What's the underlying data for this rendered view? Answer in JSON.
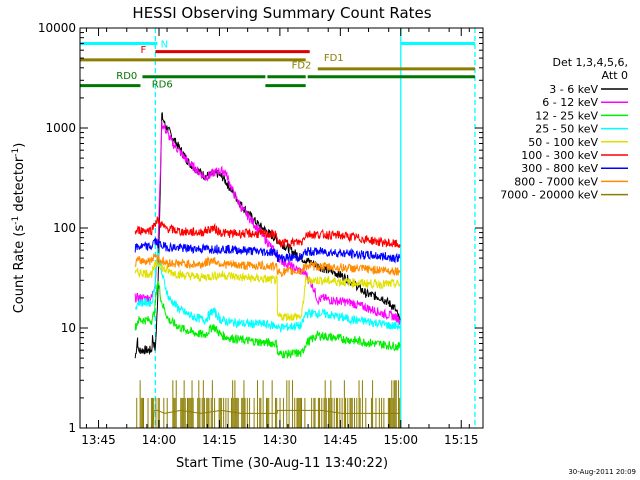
{
  "chart_data": {
    "type": "line",
    "title": "HESSI Observing Summary Count Rates",
    "xlabel": "Start Time (30-Aug-11 13:40:22)",
    "ylabel_prefix": "Count Rate (s",
    "ylabel_sup": "-1",
    "ylabel_suffix": " detector",
    "ylabel_sup2": "-1",
    "ylabel_close": ")",
    "y_scale": "log",
    "ylim": [
      1,
      10000
    ],
    "xlim_minutes": [
      0,
      100
    ],
    "x_ticks": [
      {
        "label": "13:45",
        "t": 4.6
      },
      {
        "label": "14:00",
        "t": 19.6
      },
      {
        "label": "14:15",
        "t": 34.6
      },
      {
        "label": "14:30",
        "t": 49.6
      },
      {
        "label": "14:45",
        "t": 64.6
      },
      {
        "label": "15:00",
        "t": 79.6
      },
      {
        "label": "15:15",
        "t": 94.6
      }
    ],
    "y_ticks": [
      {
        "label": "1",
        "v": 1
      },
      {
        "label": "10",
        "v": 10
      },
      {
        "label": "100",
        "v": 100
      },
      {
        "label": "1000",
        "v": 1000
      },
      {
        "label": "10000",
        "v": 10000
      }
    ],
    "legend_header": [
      "Det 1,3,4,5,6,",
      "Att 0"
    ],
    "series": [
      {
        "name": "3 - 6 keV",
        "color": "#000000",
        "x": [
          13.7,
          14.3,
          14.4,
          17.8,
          18.0,
          18.7,
          19.3,
          20.3,
          21.0,
          23.0,
          27.0,
          31.0,
          34.0,
          35.5,
          37.0,
          40.0,
          44.0,
          50.0,
          55.0,
          60.0,
          64.0,
          68.0,
          71.0,
          75.0,
          78.0,
          79.4
        ],
        "y": [
          5,
          8,
          6,
          6,
          8,
          6,
          20,
          1350,
          1100,
          800,
          450,
          330,
          350,
          320,
          260,
          170,
          110,
          70,
          50,
          40,
          35,
          28,
          22,
          20,
          16,
          12
        ]
      },
      {
        "name": "6 - 12 keV",
        "color": "#ff00ff",
        "x": [
          13.7,
          17.8,
          18.7,
          19.3,
          20.3,
          21.0,
          23.0,
          27.0,
          31.0,
          34.0,
          36.0,
          38.0,
          40.0,
          44.0,
          48.0,
          50.0,
          53.0,
          56.0,
          58.0,
          59.0,
          60.5,
          62.0,
          67.0,
          71.0,
          75.0,
          78.0,
          79.4
        ],
        "y": [
          20,
          20,
          30,
          60,
          1100,
          1000,
          700,
          450,
          320,
          370,
          370,
          230,
          160,
          100,
          60,
          47,
          40,
          35,
          25,
          19,
          20,
          19,
          18,
          16,
          14,
          13,
          12
        ]
      },
      {
        "name": "12 - 25 keV",
        "color": "#00ee00",
        "x": [
          13.7,
          14.4,
          17.8,
          18.4,
          19.3,
          20.3,
          22.0,
          25.0,
          28.0,
          31.0,
          33.0,
          35.0,
          37.0,
          41.0,
          45.0,
          48.9,
          49.0,
          52.0,
          54.0,
          55.0,
          56.0,
          59.0,
          63.0,
          68.0,
          73.0,
          77.0,
          79.4
        ],
        "y": [
          10,
          12,
          12,
          14,
          30,
          18,
          12,
          10,
          9,
          8.5,
          10.5,
          8.5,
          8,
          7.5,
          7.2,
          7,
          5.5,
          5.5,
          5.6,
          5.5,
          7.0,
          8.5,
          8,
          7.5,
          7,
          6.7,
          6.5
        ]
      },
      {
        "name": "25 - 50 keV",
        "color": "#00ffff",
        "x": [
          13.7,
          14.4,
          17.8,
          18.4,
          19.3,
          20.3,
          22.0,
          25.0,
          28.0,
          31.0,
          33.0,
          35.0,
          37.0,
          41.0,
          45.0,
          48.9,
          49.0,
          54.0,
          55.0,
          56.0,
          60.0,
          64.0,
          68.0,
          72.0,
          75.0,
          77.0,
          79.4
        ],
        "y": [
          16,
          18,
          18,
          24,
          60,
          35,
          20,
          15,
          13,
          12,
          15,
          12,
          11.5,
          11,
          11,
          10.5,
          10,
          10.5,
          10.5,
          14,
          14,
          13,
          12,
          11.5,
          11,
          10.5,
          10.5
        ]
      },
      {
        "name": "50 - 100 keV",
        "color": "#e0e000",
        "x": [
          13.7,
          14.4,
          17.8,
          18.4,
          19.3,
          21.0,
          25.0,
          30.0,
          35.0,
          40.0,
          45.0,
          48.9,
          49.0,
          54.0,
          55.0,
          56.0,
          60.0,
          65.0,
          70.0,
          75.0,
          79.4
        ],
        "y": [
          35,
          36,
          35,
          40,
          45,
          38,
          34,
          32,
          34,
          32,
          31,
          30,
          13,
          13,
          13,
          30,
          30,
          29,
          28,
          27.5,
          27.5
        ]
      },
      {
        "name": "100 - 300 keV",
        "color": "#ff0000",
        "x": [
          13.7,
          14.4,
          17.8,
          18.4,
          19.3,
          21.0,
          25.0,
          30.0,
          33.0,
          35.0,
          37.0,
          41.0,
          45.0,
          48.9,
          49.0,
          54.0,
          55.0,
          56.0,
          60.0,
          65.0,
          70.0,
          75.0,
          79.4
        ],
        "y": [
          90,
          95,
          95,
          110,
          120,
          100,
          92,
          90,
          100,
          90,
          88,
          88,
          87,
          86,
          70,
          72,
          72,
          87,
          86,
          84,
          78,
          72,
          68
        ]
      },
      {
        "name": "300 - 800 keV",
        "color": "#0000ff",
        "x": [
          13.7,
          14.4,
          17.8,
          18.4,
          19.3,
          21.0,
          25.0,
          30.0,
          35.0,
          40.0,
          45.0,
          48.9,
          49.0,
          54.0,
          55.0,
          56.0,
          60.0,
          65.0,
          70.0,
          75.0,
          79.4
        ],
        "y": [
          62,
          65,
          65,
          75,
          70,
          65,
          63,
          62,
          62,
          60,
          58,
          57,
          50,
          51,
          51,
          58,
          58,
          56,
          54,
          52,
          50
        ]
      },
      {
        "name": "800 - 7000 keV",
        "color": "#ff8c00",
        "x": [
          13.7,
          14.4,
          17.8,
          18.4,
          19.3,
          21.0,
          25.0,
          30.0,
          33.0,
          35.0,
          37.0,
          41.0,
          45.0,
          48.9,
          49.0,
          54.0,
          55.0,
          56.0,
          60.0,
          65.0,
          70.0,
          75.0,
          79.4
        ],
        "y": [
          45,
          47,
          47,
          55,
          50,
          45,
          44,
          43,
          48,
          44,
          43,
          42,
          42,
          41,
          36,
          37,
          37,
          42,
          41,
          40,
          39,
          38,
          37
        ]
      },
      {
        "name": "7000 - 20000 keV",
        "color": "#8b7d00",
        "x": [
          13.7,
          14.4,
          17.8,
          18.4,
          19.3,
          21.0,
          25.0,
          30.0,
          35.0,
          40.0,
          45.0,
          48.9,
          49.0,
          54.0,
          55.0,
          56.0,
          60.0,
          65.0,
          70.0,
          75.0,
          79.4
        ],
        "y": [
          1,
          1,
          1,
          1.5,
          1.5,
          1.4,
          1.5,
          1.4,
          1.5,
          1.4,
          1.4,
          1.4,
          1.5,
          1.5,
          1.5,
          1.5,
          1.5,
          1.4,
          1.4,
          1.4,
          1.4
        ]
      }
    ],
    "legend_colors": [
      "#000000",
      "#ff00ff",
      "#00ee00",
      "#00ffff",
      "#e0e000",
      "#ff0000",
      "#0000ff",
      "#ff8c00",
      "#8b7d00"
    ],
    "state_bars": [
      {
        "label": "N",
        "color": "#00ffff",
        "value": 7000,
        "segments": [
          [
            0,
            19.2
          ],
          [
            79.6,
            98.0
          ]
        ]
      },
      {
        "label": "F",
        "color": "#dd0000",
        "value": 5800,
        "segments": [
          [
            18.7,
            57.0
          ]
        ]
      },
      {
        "label": "FD1",
        "color": "#8b7d00",
        "value": 4800,
        "segments": [
          [
            0,
            56.0
          ]
        ]
      },
      {
        "label": "FD2",
        "color": "#8b7d00",
        "value": 3900,
        "segments": [
          [
            59.0,
            98.0
          ]
        ]
      },
      {
        "label": "RD0",
        "color": "#007700",
        "value": 3250,
        "segments": [
          [
            15.5,
            46.0
          ],
          [
            46.5,
            56.0
          ],
          [
            56.5,
            98.0
          ]
        ]
      },
      {
        "label": "RD6",
        "color": "#007700",
        "value": 2650,
        "segments": [
          [
            0,
            15.0
          ],
          [
            46.0,
            56.0
          ]
        ]
      }
    ],
    "vertical_markers": [
      {
        "t": 18.7,
        "color": "#00ffff",
        "style": "dashed"
      },
      {
        "t": 79.6,
        "color": "#00ffff",
        "style": "solid"
      },
      {
        "t": 98.0,
        "color": "#00ffff",
        "style": "dashed"
      }
    ],
    "footer_date": "30-Aug-2011 20:09"
  }
}
